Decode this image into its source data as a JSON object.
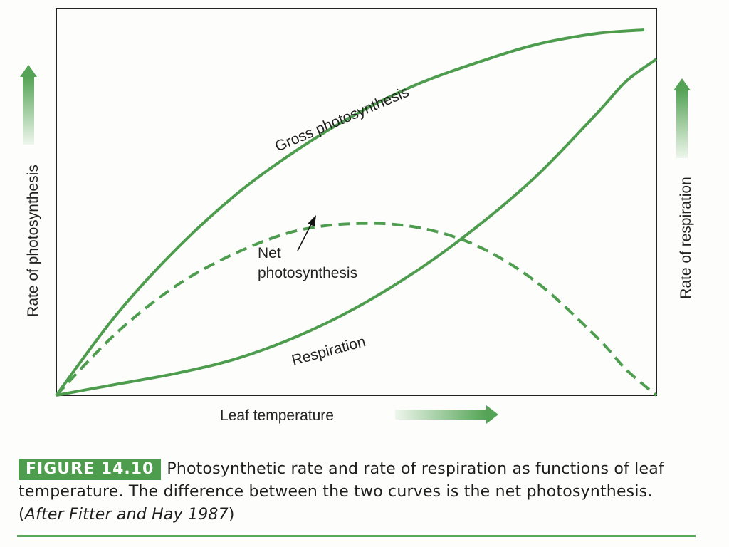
{
  "chart_data": {
    "type": "line",
    "xlabel": "Leaf temperature",
    "ylabel_left": "Rate of photosynthesis",
    "ylabel_right": "Rate of respiration",
    "xlim": [
      0,
      1
    ],
    "ylim": [
      0,
      1
    ],
    "grid": false,
    "series": [
      {
        "name": "Gross photosynthesis",
        "style": "solid",
        "points": [
          [
            0,
            0
          ],
          [
            0.1,
            0.22
          ],
          [
            0.2,
            0.4
          ],
          [
            0.3,
            0.55
          ],
          [
            0.4,
            0.67
          ],
          [
            0.5,
            0.77
          ],
          [
            0.6,
            0.85
          ],
          [
            0.7,
            0.91
          ],
          [
            0.8,
            0.96
          ],
          [
            0.9,
            0.99
          ],
          [
            0.98,
            1.0
          ]
        ]
      },
      {
        "name": "Net photosynthesis",
        "style": "dashed",
        "points": [
          [
            0,
            0
          ],
          [
            0.1,
            0.17
          ],
          [
            0.2,
            0.3
          ],
          [
            0.3,
            0.39
          ],
          [
            0.4,
            0.45
          ],
          [
            0.5,
            0.47
          ],
          [
            0.6,
            0.46
          ],
          [
            0.7,
            0.41
          ],
          [
            0.8,
            0.31
          ],
          [
            0.9,
            0.16
          ],
          [
            0.95,
            0.07
          ],
          [
            1.0,
            0
          ]
        ]
      },
      {
        "name": "Respiration",
        "style": "solid",
        "points": [
          [
            0,
            0
          ],
          [
            0.1,
            0.03
          ],
          [
            0.2,
            0.06
          ],
          [
            0.3,
            0.1
          ],
          [
            0.4,
            0.16
          ],
          [
            0.5,
            0.24
          ],
          [
            0.6,
            0.34
          ],
          [
            0.7,
            0.46
          ],
          [
            0.8,
            0.6
          ],
          [
            0.9,
            0.77
          ],
          [
            0.95,
            0.86
          ],
          [
            1.0,
            0.92
          ]
        ]
      }
    ],
    "annotations": [
      "Net photosynthesis"
    ]
  },
  "caption": {
    "label": "FIGURE 14.10",
    "text": "Photosynthetic rate and rate of respiration as functions of leaf temperature. The difference between the two curves is the net photosynthesis. (",
    "source": "After Fitter and Hay 1987",
    "close": ")"
  },
  "colors": {
    "curve": "#4e9d4f",
    "arrow_light": "#e8f3e6",
    "arrow_dark": "#55a356",
    "frame": "#222222"
  }
}
